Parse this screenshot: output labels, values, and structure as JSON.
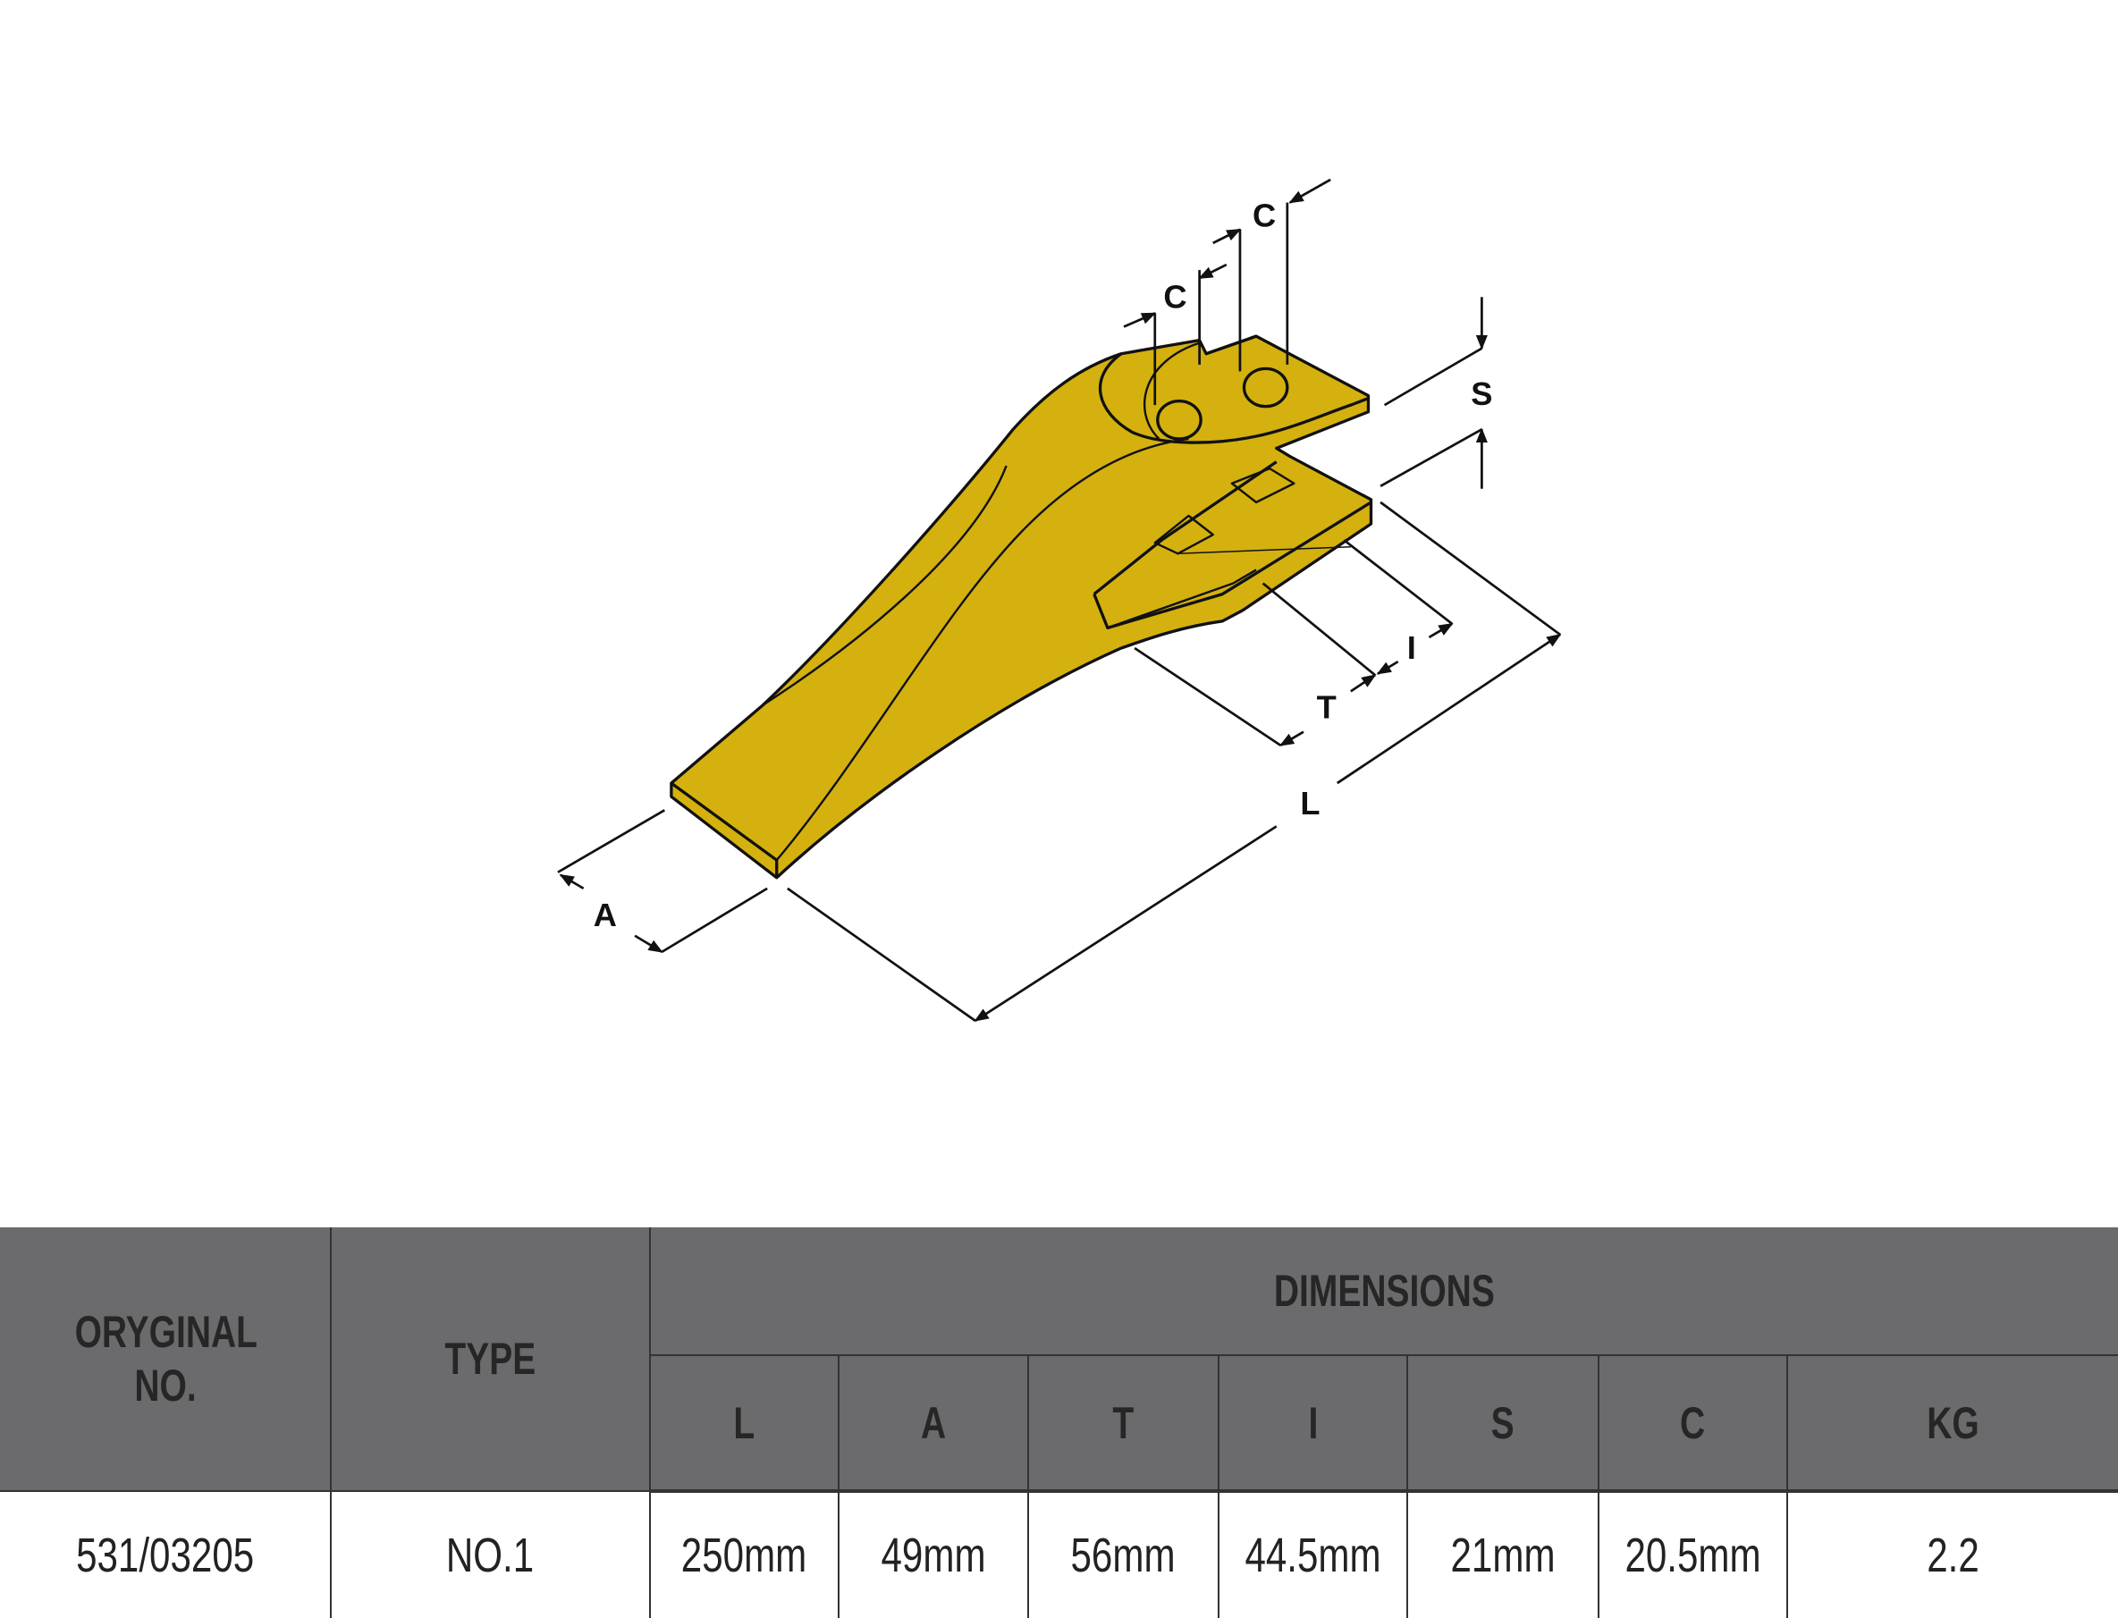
{
  "drawing": {
    "part": "bucket tooth adapter",
    "fill_color": "#d4b10e",
    "labels": {
      "A": "A",
      "L": "L",
      "T": "T",
      "I": "I",
      "S": "S",
      "C1": "C",
      "C2": "C"
    }
  },
  "table": {
    "header_bg": "#6b6b6d",
    "headers": {
      "original_no": "ORYGINAL NO.",
      "type": "TYPE",
      "dimensions": "DIMENSIONS",
      "columns": [
        "L",
        "A",
        "T",
        "I",
        "S",
        "C"
      ],
      "kg": "KG"
    },
    "rows": [
      {
        "original_no": "531/03205",
        "type": "NO.1",
        "values": [
          "250mm",
          "49mm",
          "56mm",
          "44.5mm",
          "21mm",
          "20.5mm"
        ],
        "kg": "2.2"
      }
    ]
  }
}
